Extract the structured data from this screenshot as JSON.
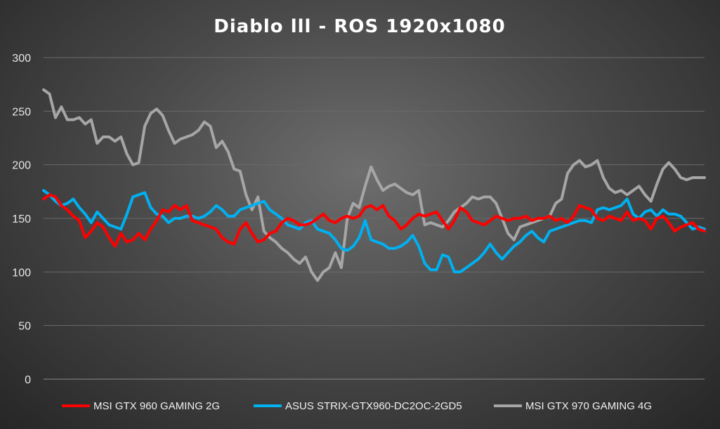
{
  "chart_data": {
    "type": "line",
    "title": "Diablo lll - ROS 1920x1080",
    "xlabel": "",
    "ylabel": "",
    "ylim": [
      0,
      300
    ],
    "yticks": [
      "0",
      "50",
      "100",
      "150",
      "200",
      "250",
      "300"
    ],
    "grid": true,
    "legend_position": "bottom",
    "series": [
      {
        "name": "MSI GTX 960 GAMING 2G",
        "color": "#ff0000",
        "values": [
          168,
          172,
          170,
          162,
          158,
          152,
          148,
          132,
          138,
          146,
          142,
          132,
          124,
          136,
          128,
          130,
          136,
          130,
          140,
          148,
          158,
          156,
          162,
          158,
          162,
          148,
          146,
          144,
          142,
          140,
          132,
          128,
          126,
          140,
          146,
          136,
          128,
          130,
          136,
          138,
          146,
          150,
          148,
          144,
          144,
          146,
          150,
          154,
          148,
          146,
          150,
          152,
          150,
          152,
          160,
          162,
          158,
          162,
          152,
          148,
          140,
          144,
          150,
          154,
          152,
          154,
          156,
          148,
          140,
          148,
          160,
          156,
          148,
          146,
          144,
          148,
          152,
          150,
          148,
          150,
          150,
          152,
          148,
          150,
          150,
          152,
          148,
          150,
          146,
          152,
          162,
          160,
          158,
          150,
          148,
          152,
          150,
          148,
          156,
          148,
          150,
          148,
          140,
          150,
          152,
          146,
          138,
          142,
          144,
          146,
          140,
          138
        ]
      },
      {
        "name": "ASUS STRIX-GTX960-DC2OC-2GD5",
        "color": "#00b0f0",
        "values": [
          176,
          172,
          166,
          162,
          164,
          168,
          160,
          154,
          146,
          156,
          150,
          144,
          142,
          140,
          154,
          170,
          172,
          174,
          160,
          154,
          152,
          146,
          150,
          150,
          152,
          152,
          150,
          152,
          156,
          162,
          158,
          152,
          152,
          158,
          160,
          162,
          164,
          166,
          158,
          154,
          150,
          144,
          142,
          140,
          146,
          148,
          140,
          138,
          136,
          130,
          122,
          120,
          124,
          132,
          148,
          130,
          128,
          126,
          122,
          122,
          124,
          128,
          134,
          124,
          108,
          102,
          102,
          116,
          114,
          100,
          100,
          104,
          108,
          112,
          118,
          126,
          118,
          112,
          118,
          124,
          128,
          134,
          138,
          132,
          128,
          138,
          140,
          142,
          144,
          146,
          148,
          148,
          146,
          158,
          160,
          158,
          160,
          162,
          168,
          154,
          150,
          156,
          158,
          152,
          158,
          154,
          154,
          152,
          146,
          140,
          142,
          140
        ]
      },
      {
        "name": "MSI GTX 970 GAMING 4G",
        "color": "#a6a6a6",
        "values": [
          270,
          266,
          244,
          254,
          242,
          242,
          244,
          238,
          242,
          220,
          226,
          226,
          222,
          226,
          210,
          200,
          202,
          236,
          248,
          252,
          246,
          232,
          220,
          224,
          226,
          228,
          232,
          240,
          236,
          216,
          222,
          212,
          196,
          194,
          172,
          158,
          170,
          138,
          132,
          128,
          122,
          118,
          112,
          108,
          114,
          100,
          92,
          100,
          104,
          118,
          104,
          150,
          164,
          160,
          180,
          198,
          186,
          176,
          180,
          182,
          178,
          174,
          172,
          176,
          144,
          146,
          144,
          142,
          148,
          156,
          160,
          164,
          170,
          168,
          170,
          170,
          164,
          150,
          136,
          130,
          142,
          144,
          146,
          148,
          150,
          152,
          164,
          168,
          192,
          200,
          204,
          198,
          200,
          204,
          188,
          178,
          174,
          176,
          172,
          176,
          180,
          172,
          166,
          182,
          196,
          202,
          196,
          188,
          186,
          188,
          188,
          188
        ]
      }
    ]
  }
}
